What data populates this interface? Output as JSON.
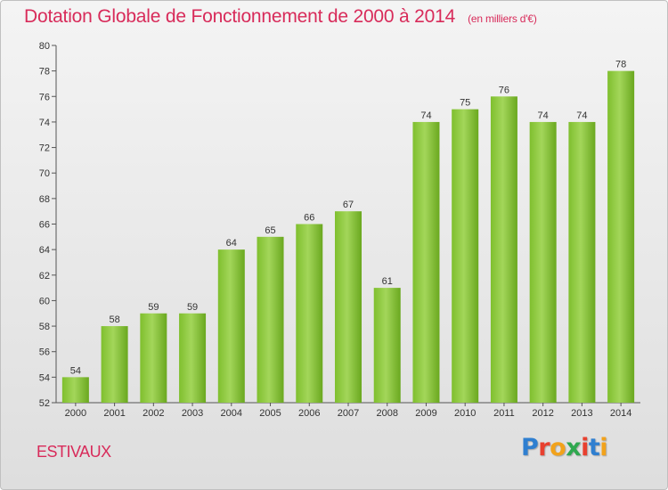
{
  "header": {
    "title": "Dotation Globale de Fonctionnement de 2000 à 2014",
    "subtitle": "(en milliers d'€)"
  },
  "footer": {
    "commune": "ESTIVAUX",
    "logo": "Proxiti"
  },
  "colors": {
    "accent": "#d82b5a",
    "bar_light": "#9ed150",
    "bar_dark": "#6aa81f"
  },
  "chart_data": {
    "type": "bar",
    "categories": [
      "2000",
      "2001",
      "2002",
      "2003",
      "2004",
      "2005",
      "2006",
      "2007",
      "2008",
      "2009",
      "2010",
      "2011",
      "2012",
      "2013",
      "2014"
    ],
    "values": [
      54,
      58,
      59,
      59,
      64,
      65,
      66,
      67,
      61,
      74,
      75,
      76,
      74,
      74,
      78
    ],
    "ylim": [
      52,
      80
    ],
    "yticks": [
      52,
      54,
      56,
      58,
      60,
      62,
      64,
      66,
      68,
      70,
      72,
      74,
      76,
      78,
      80
    ],
    "grid": false,
    "data_labels": true
  }
}
